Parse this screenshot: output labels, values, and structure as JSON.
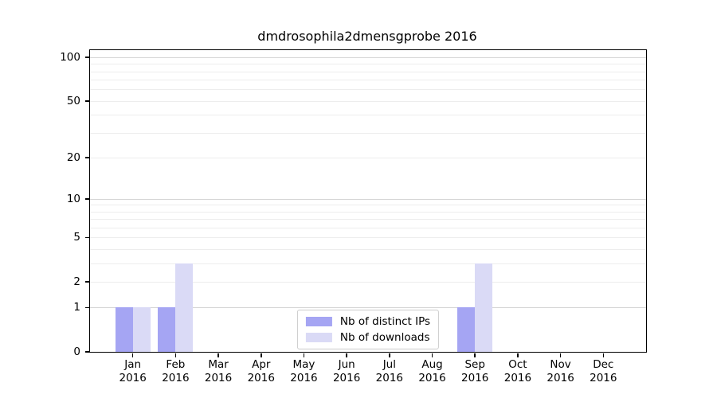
{
  "chart_data": {
    "type": "bar",
    "title": "dmdrosophila2dmensgprobe 2016",
    "categories": [
      {
        "month": "Jan",
        "year": "2016"
      },
      {
        "month": "Feb",
        "year": "2016"
      },
      {
        "month": "Mar",
        "year": "2016"
      },
      {
        "month": "Apr",
        "year": "2016"
      },
      {
        "month": "May",
        "year": "2016"
      },
      {
        "month": "Jun",
        "year": "2016"
      },
      {
        "month": "Jul",
        "year": "2016"
      },
      {
        "month": "Aug",
        "year": "2016"
      },
      {
        "month": "Sep",
        "year": "2016"
      },
      {
        "month": "Oct",
        "year": "2016"
      },
      {
        "month": "Nov",
        "year": "2016"
      },
      {
        "month": "Dec",
        "year": "2016"
      }
    ],
    "series": [
      {
        "name": "Nb of distinct IPs",
        "color": "#a5a5f3",
        "values": [
          1,
          1,
          0,
          0,
          0,
          0,
          0,
          0,
          1,
          0,
          0,
          0
        ]
      },
      {
        "name": "Nb of downloads",
        "color": "#dadaf6",
        "values": [
          1,
          3,
          0,
          0,
          0,
          0,
          0,
          0,
          3,
          0,
          0,
          0
        ]
      }
    ],
    "yscale": "log1p",
    "ylim": [
      0,
      112
    ],
    "yticks": [
      0,
      1,
      2,
      5,
      10,
      20,
      50,
      100
    ],
    "gridlines": {
      "major": [
        1,
        10,
        100
      ],
      "minor": [
        2,
        3,
        4,
        5,
        6,
        7,
        8,
        9,
        20,
        30,
        40,
        50,
        60,
        70,
        80,
        90
      ]
    },
    "grid": "horizontal",
    "legend_position": "bottom-center",
    "colors": {
      "grid_major": "#d5d5d5",
      "grid_minor": "#ededed",
      "spine": "#000000",
      "background": "#ffffff"
    }
  }
}
